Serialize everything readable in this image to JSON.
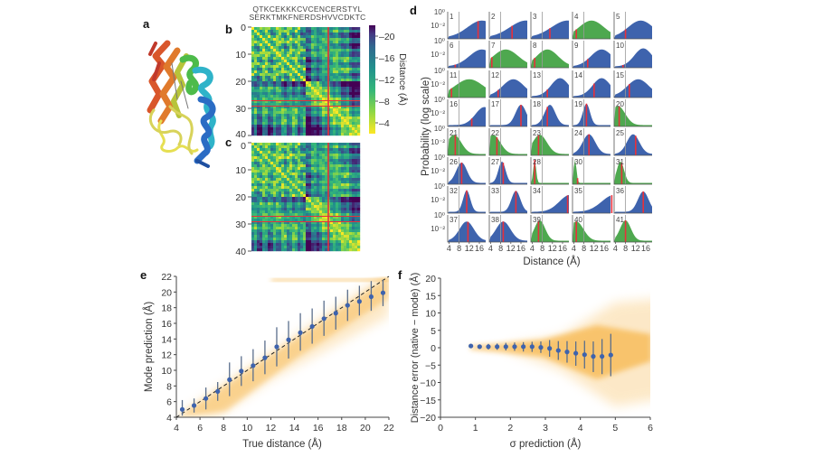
{
  "panel_labels": {
    "a": "a",
    "b": "b",
    "c": "c",
    "d": "d",
    "e": "e",
    "f": "f"
  },
  "chart_data": [
    {
      "panel": "b",
      "type": "heatmap",
      "sequence_top": "QTKCEKKKCVCENCERSTYL",
      "sequence_bottom": "SERKTMKFNERDSHVVCDKTC",
      "axis_ticks": [
        0,
        10,
        20,
        30,
        40
      ],
      "highlight_residue": 28,
      "highlight_color": "#e8303a",
      "colorbar": {
        "label": "Distance (Å)",
        "ticks": [
          20,
          16,
          12,
          8,
          4
        ],
        "range": [
          2,
          22
        ],
        "colormap": "viridis (reversed: short = yellow, long = dark purple)"
      }
    },
    {
      "panel": "c",
      "type": "heatmap",
      "axis_ticks": [
        0,
        10,
        20,
        30,
        40
      ],
      "highlight_residue": 28
    },
    {
      "panel": "d",
      "type": "bar",
      "xlabel": "Distance (Å)",
      "ylabel": "Probability (log scale)",
      "xticks": [
        4,
        8,
        12,
        16
      ],
      "yticks": [
        "10⁰",
        "10⁻²"
      ],
      "reference_line": 8,
      "colors": {
        "blue": "#3e63ad",
        "green": "#4ea84f",
        "true": "#e8303a",
        "reference": "#999999"
      },
      "histograms": [
        {
          "label": "1",
          "color": "blue",
          "true_distance": 15.5,
          "mode": 17,
          "spread": 8
        },
        {
          "label": "2",
          "color": "blue",
          "true_distance": 12.5,
          "mode": 18,
          "spread": 9
        },
        {
          "label": "3",
          "color": "blue",
          "true_distance": 11,
          "mode": 18,
          "spread": 9
        },
        {
          "label": "4",
          "color": "green",
          "true_distance": 5,
          "mode": 11,
          "spread": 7
        },
        {
          "label": "5",
          "color": "blue",
          "true_distance": 8,
          "mode": 14,
          "spread": 7
        },
        {
          "label": "6",
          "color": "blue",
          "true_distance": 6.5,
          "mode": 17,
          "spread": 7
        },
        {
          "label": "7",
          "color": "green",
          "true_distance": 4.5,
          "mode": 10,
          "spread": 7
        },
        {
          "label": "8",
          "color": "green",
          "true_distance": 5,
          "mode": 10,
          "spread": 6
        },
        {
          "label": "9",
          "color": "blue",
          "true_distance": 9.5,
          "mode": 15,
          "spread": 6
        },
        {
          "label": "10",
          "color": "blue",
          "true_distance": 7,
          "mode": 15,
          "spread": 5
        },
        {
          "label": "11",
          "color": "green",
          "true_distance": 5,
          "mode": 12,
          "spread": 8
        },
        {
          "label": "12",
          "color": "blue",
          "true_distance": 7,
          "mode": 13,
          "spread": 6
        },
        {
          "label": "13",
          "color": "blue",
          "true_distance": 10,
          "mode": 15,
          "spread": 5
        },
        {
          "label": "14",
          "color": "blue",
          "true_distance": 12,
          "mode": 15,
          "spread": 5
        },
        {
          "label": "15",
          "color": "blue",
          "true_distance": 9.5,
          "mode": 13,
          "spread": 6
        },
        {
          "label": "16",
          "color": "blue",
          "true_distance": 13,
          "mode": 18,
          "spread": 5
        },
        {
          "label": "17",
          "color": "blue",
          "true_distance": 16,
          "mode": 16,
          "spread": 3
        },
        {
          "label": "18",
          "color": "blue",
          "true_distance": 10,
          "mode": 11,
          "spread": 3
        },
        {
          "label": "19",
          "color": "blue",
          "true_distance": 9,
          "mode": 9,
          "spread": 2
        },
        {
          "label": "20",
          "color": "green",
          "true_distance": 5.5,
          "mode": 5,
          "spread": 4
        },
        {
          "label": "21",
          "color": "green",
          "true_distance": 6.5,
          "mode": 6,
          "spread": 4
        },
        {
          "label": "22",
          "color": "green",
          "true_distance": 6.5,
          "mode": 5,
          "spread": 4
        },
        {
          "label": "23",
          "color": "green",
          "true_distance": 6.5,
          "mode": 7,
          "spread": 4
        },
        {
          "label": "24",
          "color": "blue",
          "true_distance": 10,
          "mode": 10,
          "spread": 3.5
        },
        {
          "label": "25",
          "color": "blue",
          "true_distance": 12,
          "mode": 11,
          "spread": 3.5
        },
        {
          "label": "26",
          "color": "blue",
          "true_distance": 9,
          "mode": 9,
          "spread": 3
        },
        {
          "label": "27",
          "color": "blue",
          "true_distance": 9,
          "mode": 8.5,
          "spread": 2
        },
        {
          "label": "28",
          "color": "green",
          "true_distance": 5,
          "mode": 5,
          "spread": 0.8
        },
        {
          "label": "30",
          "color": "green",
          "true_distance": 5.5,
          "mode": 4.5,
          "spread": 0.8
        },
        {
          "label": "31",
          "color": "green",
          "true_distance": 6.5,
          "mode": 6,
          "spread": 2
        },
        {
          "label": "32",
          "color": "blue",
          "true_distance": 11,
          "mode": 11,
          "spread": 2
        },
        {
          "label": "33",
          "color": "blue",
          "true_distance": 14,
          "mode": 14,
          "spread": 2.5
        },
        {
          "label": "34",
          "color": "blue",
          "true_distance": 18,
          "mode": 19,
          "spread": 6
        },
        {
          "label": "35",
          "color": "blue",
          "true_distance": 19,
          "mode": 20,
          "spread": 7
        },
        {
          "label": "36",
          "color": "blue",
          "true_distance": 15,
          "mode": 15,
          "spread": 3
        },
        {
          "label": "37",
          "color": "blue",
          "true_distance": 11.5,
          "mode": 11,
          "spread": 4
        },
        {
          "label": "38",
          "color": "blue",
          "true_distance": 9,
          "mode": 9,
          "spread": 4
        },
        {
          "label": "39",
          "color": "green",
          "true_distance": 6.5,
          "mode": 7,
          "spread": 3
        },
        {
          "label": "40",
          "color": "green",
          "true_distance": 5,
          "mode": 5,
          "spread": 4
        },
        {
          "label": "41",
          "color": "green",
          "true_distance": 8,
          "mode": 8,
          "spread": 3
        }
      ]
    },
    {
      "panel": "e",
      "type": "scatter",
      "xlabel": "True distance (Å)",
      "ylabel": "Mode prediction (Å)",
      "xlim": [
        4,
        22
      ],
      "ylim": [
        4,
        22
      ],
      "xticks": [
        4,
        6,
        8,
        10,
        12,
        14,
        16,
        18,
        20,
        22
      ],
      "yticks": [
        4,
        6,
        8,
        10,
        12,
        14,
        16,
        18,
        20,
        22
      ],
      "diagonal": true,
      "point_color": "#3e63ad",
      "density_color": "#f5a623",
      "x": [
        4.5,
        5.5,
        6.5,
        7.5,
        8.5,
        9.5,
        10.5,
        11.5,
        12.5,
        13.5,
        14.5,
        15.5,
        16.5,
        17.5,
        18.5,
        19.5,
        20.5,
        21.5
      ],
      "y": [
        5.0,
        5.5,
        6.4,
        7.3,
        8.8,
        9.9,
        10.6,
        11.6,
        13.0,
        13.9,
        14.8,
        15.6,
        16.6,
        17.3,
        18.3,
        18.8,
        19.4,
        19.9
      ],
      "err_low": [
        4.2,
        4.6,
        5.0,
        6.1,
        6.7,
        8.0,
        8.6,
        9.5,
        10.5,
        11.5,
        12.5,
        13.4,
        14.4,
        15.2,
        16.3,
        17.0,
        17.6,
        18.2
      ],
      "err_high": [
        6.2,
        6.4,
        7.8,
        8.5,
        11.0,
        11.8,
        12.7,
        13.8,
        15.5,
        16.3,
        17.3,
        17.9,
        18.9,
        19.4,
        20.3,
        20.8,
        21.4,
        21.6
      ]
    },
    {
      "panel": "f",
      "type": "scatter",
      "xlabel": "σ prediction (Å)",
      "ylabel": "Distance error (native − mode) (Å)",
      "xlim": [
        0,
        6
      ],
      "ylim": [
        -20,
        20
      ],
      "xticks": [
        0,
        1,
        2,
        3,
        4,
        5,
        6
      ],
      "yticks": [
        "20",
        "15",
        "10",
        "5",
        "0",
        "−5",
        "−10",
        "−15",
        "−20"
      ],
      "point_color": "#3e63ad",
      "density_color": "#f5a623",
      "x": [
        0.87,
        1.12,
        1.37,
        1.62,
        1.87,
        2.12,
        2.37,
        2.62,
        2.87,
        3.12,
        3.37,
        3.62,
        3.87,
        4.12,
        4.37,
        4.62,
        4.87
      ],
      "y": [
        0.5,
        0.3,
        0.3,
        0.3,
        0.3,
        0.3,
        0.3,
        0.3,
        0.1,
        -0.2,
        -0.8,
        -1.2,
        -1.6,
        -2.0,
        -2.5,
        -2.5,
        -2.1
      ],
      "err_low": [
        0.5,
        -0.3,
        -0.5,
        -0.6,
        -0.8,
        -0.9,
        -1.1,
        -1.2,
        -1.5,
        -2.6,
        -3.5,
        -4.3,
        -5.2,
        -6.0,
        -7.0,
        -7.6,
        -8.2
      ],
      "err_high": [
        0.5,
        0.9,
        1.1,
        1.2,
        1.4,
        1.5,
        1.6,
        1.7,
        1.8,
        2.2,
        1.9,
        1.9,
        1.8,
        2.0,
        1.8,
        2.5,
        4.0
      ]
    }
  ]
}
